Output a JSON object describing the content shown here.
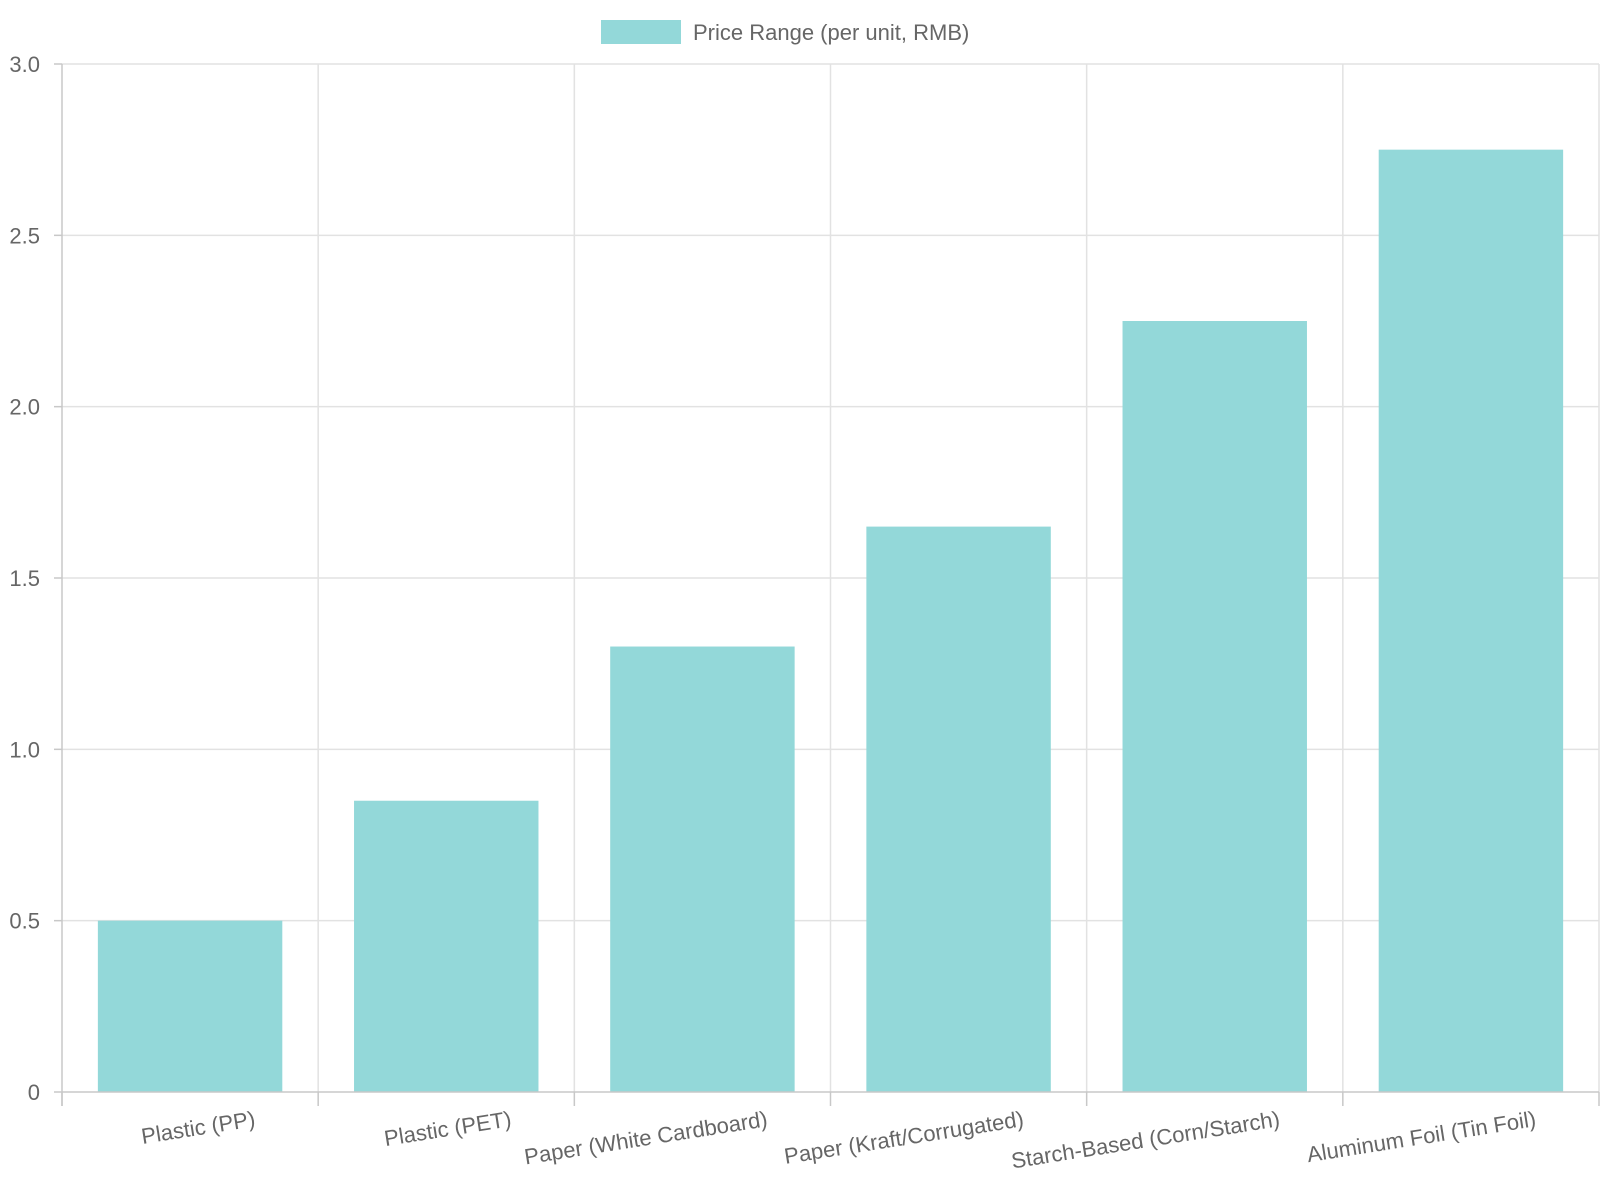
{
  "chart_data": {
    "type": "bar",
    "categories": [
      "Plastic (PP)",
      "Plastic (PET)",
      "Paper (White Cardboard)",
      "Paper (Kraft/Corrugated)",
      "Starch-Based (Corn/Starch)",
      "Aluminum Foil (Tin Foil)"
    ],
    "series": [
      {
        "name": "Price Range (per unit, RMB)",
        "values": [
          0.5,
          0.85,
          1.3,
          1.65,
          2.25,
          2.75
        ]
      }
    ],
    "yticks": [
      "0",
      "0.5",
      "1.0",
      "1.5",
      "2.0",
      "2.5",
      "3.0"
    ],
    "ylim": [
      0,
      3.0
    ],
    "grid": true,
    "legend_position": "top-center",
    "colors": {
      "bar_fill": "#93d8d9",
      "grid": "#e2e2e2",
      "axis": "#c8c8c8",
      "text": "#666666"
    }
  }
}
